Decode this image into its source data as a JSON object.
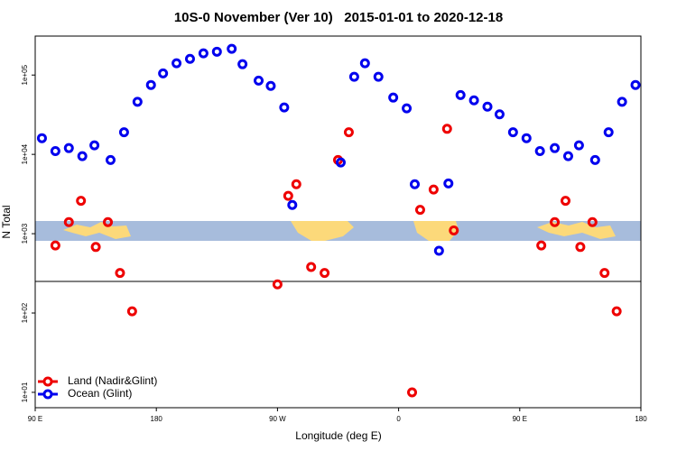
{
  "chart_data": {
    "type": "scatter",
    "title": "10S-0 November (Ver 10)   2015-01-01 to 2020-12-18",
    "xlabel": "Longitude (deg E)",
    "ylabel": "N Total",
    "xlim": [
      90,
      540
    ],
    "ylim": [
      6.4,
      310000
    ],
    "log_y": true,
    "legend": "bottom-left",
    "xticks": [
      {
        "value": 90,
        "label": "90 E"
      },
      {
        "value": 180,
        "label": "180"
      },
      {
        "value": 270,
        "label": "90 W"
      },
      {
        "value": 360,
        "label": "0"
      },
      {
        "value": 450,
        "label": "90 E"
      },
      {
        "value": 540,
        "label": "180"
      }
    ],
    "yticks": [
      {
        "value": 10,
        "label": "1e+01"
      },
      {
        "value": 100,
        "label": "1e+02"
      },
      {
        "value": 1000,
        "label": "1e+03"
      },
      {
        "value": 10000,
        "label": "1e+04"
      },
      {
        "value": 100000,
        "label": "1e+05"
      }
    ],
    "hline": 250,
    "series": [
      {
        "name": "Land (Nadir&Glint)",
        "color": "#ee0000",
        "x": [
          105,
          115,
          124,
          135,
          144,
          153,
          162,
          270,
          278,
          284,
          295,
          305,
          315,
          323,
          370,
          376,
          386,
          396,
          401,
          466,
          476,
          484,
          495,
          504,
          513,
          522
        ],
        "values": [
          710,
          1400,
          2600,
          680,
          1400,
          320,
          105,
          230,
          3000,
          4200,
          380,
          320,
          8500,
          19000,
          10,
          2000,
          3600,
          21000,
          1100,
          710,
          1400,
          2600,
          680,
          1400,
          320,
          105
        ]
      },
      {
        "name": "Ocean (Glint)",
        "color": "#0000ee",
        "x": [
          95,
          105,
          115,
          125,
          134,
          146,
          156,
          166,
          176,
          185,
          195,
          205,
          215,
          225,
          236,
          244,
          256,
          265,
          275,
          281,
          317,
          327,
          335,
          345,
          356,
          366,
          372,
          390,
          397,
          406,
          416,
          426,
          435,
          445,
          455,
          465,
          476,
          486,
          494,
          506,
          516,
          526,
          536
        ],
        "values": [
          16000,
          11000,
          12000,
          9500,
          13000,
          8500,
          19000,
          46000,
          75000,
          105000,
          141000,
          160000,
          188000,
          197000,
          214000,
          137000,
          85000,
          73000,
          39000,
          2300,
          7900,
          95000,
          141000,
          95000,
          52000,
          38000,
          4200,
          610,
          4300,
          56000,
          48000,
          40000,
          32000,
          19000,
          16000,
          11000,
          12000,
          9500,
          13000,
          8500,
          19000,
          46000,
          75000
        ]
      }
    ]
  }
}
